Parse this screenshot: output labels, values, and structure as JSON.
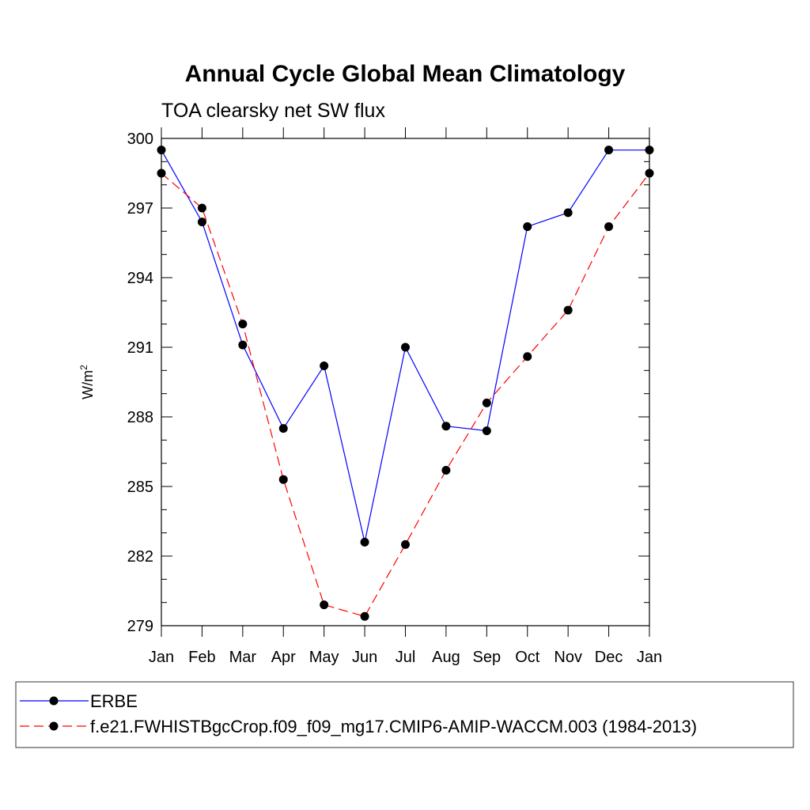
{
  "chart_data": {
    "type": "line",
    "title": "Annual Cycle Global Mean Climatology",
    "subtitle": "TOA clearsky net SW flux",
    "ylabel_base": "W/m",
    "ylabel_sup": "2",
    "categories": [
      "Jan",
      "Feb",
      "Mar",
      "Apr",
      "May",
      "Jun",
      "Jul",
      "Aug",
      "Sep",
      "Oct",
      "Nov",
      "Dec",
      "Jan"
    ],
    "ylim": [
      279,
      300
    ],
    "yticks": [
      279,
      282,
      285,
      288,
      291,
      294,
      297,
      300
    ],
    "series": [
      {
        "name": "ERBE",
        "color": "#0000ff",
        "dash": "solid",
        "values": [
          299.5,
          296.4,
          291.1,
          287.5,
          290.2,
          282.6,
          291.0,
          287.6,
          287.4,
          296.2,
          296.8,
          299.5,
          299.5
        ]
      },
      {
        "name": "f.e21.FWHISTBgcCrop.f09_f09_mg17.CMIP6-AMIP-WACCM.003 (1984-2013)",
        "color": "#ff0000",
        "dash": "dashed",
        "values": [
          298.5,
          297.0,
          292.0,
          285.3,
          279.9,
          279.4,
          282.5,
          285.7,
          288.6,
          290.6,
          292.6,
          296.2,
          298.5
        ]
      }
    ]
  }
}
